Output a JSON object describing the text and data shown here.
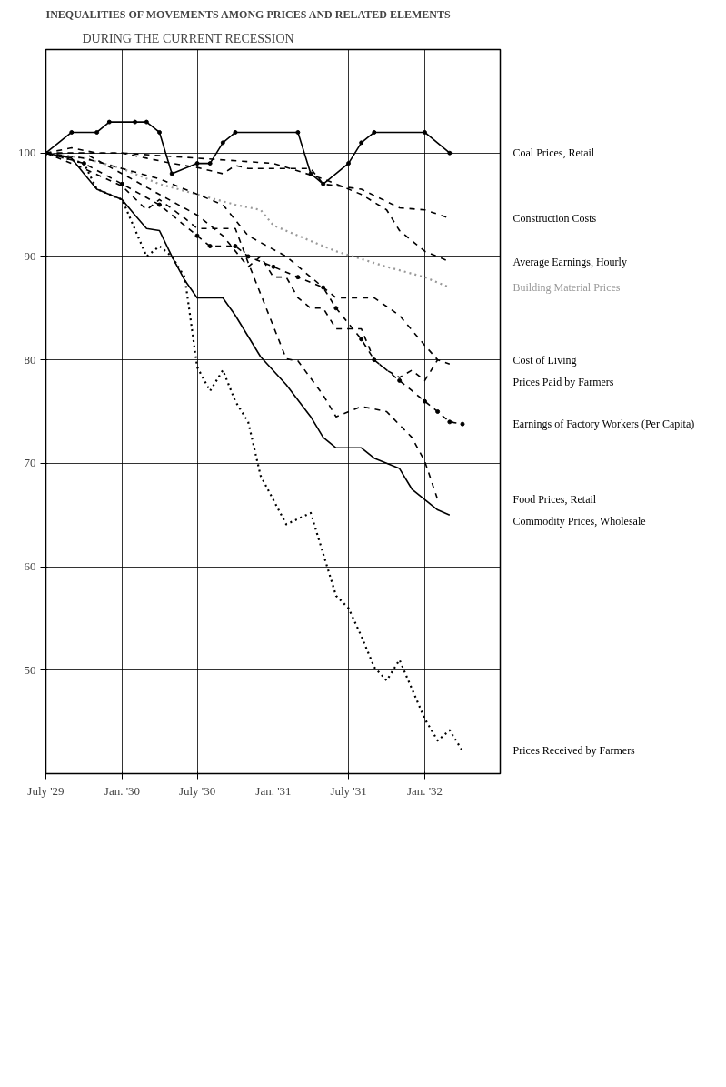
{
  "chart_data": {
    "type": "line",
    "title": "INEQUALITIES OF MOVEMENTS AMONG PRICES AND RELATED ELEMENTS",
    "subtitle": "DURING THE CURRENT RECESSION",
    "xlim": [
      "1929-07",
      "1932-07"
    ],
    "ylim": [
      40,
      110
    ],
    "xticks": [
      {
        "value": "1929-07",
        "label": "July '29"
      },
      {
        "value": "1930-01",
        "label": "Jan. '30"
      },
      {
        "value": "1930-07",
        "label": "July '30"
      },
      {
        "value": "1931-01",
        "label": "Jan. '31"
      },
      {
        "value": "1931-07",
        "label": "July '31"
      },
      {
        "value": "1932-01",
        "label": "Jan. '32"
      }
    ],
    "yticks": [
      50,
      60,
      70,
      80,
      90,
      100
    ],
    "grid": true,
    "legend": false,
    "series": [
      {
        "name": "Coal Prices, Retail",
        "color": "#000000",
        "line_style": "solid",
        "marker": "circle",
        "x": [
          "1929-07",
          "1929-09",
          "1929-11",
          "1929-12",
          "1930-02",
          "1930-03",
          "1930-04",
          "1930-05",
          "1930-07",
          "1930-08",
          "1930-09",
          "1930-10",
          "1931-03",
          "1931-04",
          "1931-05",
          "1931-07",
          "1931-08",
          "1931-09",
          "1932-01",
          "1932-03"
        ],
        "values": [
          100,
          102,
          102,
          103,
          103,
          103,
          102,
          98,
          99,
          99,
          101,
          102,
          102,
          98,
          97,
          99,
          101,
          102,
          102,
          100
        ]
      },
      {
        "name": "Construction Costs",
        "color": "#000000",
        "line_style": "dashed",
        "x": [
          "1929-07",
          "1929-09",
          "1929-11",
          "1930-01",
          "1930-03",
          "1930-05",
          "1930-07",
          "1930-09",
          "1930-10",
          "1930-11",
          "1931-01",
          "1931-04",
          "1931-05",
          "1931-08",
          "1931-11",
          "1932-01",
          "1932-03"
        ],
        "values": [
          100,
          100.5,
          100,
          100,
          99.5,
          99,
          98.6,
          98,
          98.8,
          98.5,
          98.5,
          98.5,
          97,
          96.5,
          94.7,
          94.5,
          93.7
        ]
      },
      {
        "name": "Average Earnings, Hourly",
        "color": "#000000",
        "line_style": "dashed",
        "x": [
          "1929-07",
          "1930-01",
          "1930-07",
          "1931-01",
          "1931-05",
          "1931-08",
          "1931-10",
          "1931-11",
          "1932-01",
          "1932-03"
        ],
        "values": [
          100,
          100,
          99.5,
          99,
          97.5,
          96,
          94.5,
          92.5,
          90.5,
          89.5
        ]
      },
      {
        "name": "Building Material Prices",
        "color": "#999999",
        "line_style": "dotted",
        "x": [
          "1929-07",
          "1929-10",
          "1930-01",
          "1930-04",
          "1930-07",
          "1930-10",
          "1930-12",
          "1931-01",
          "1931-04",
          "1931-06",
          "1931-10",
          "1932-01",
          "1932-03"
        ],
        "values": [
          100,
          99.5,
          98.5,
          97,
          96,
          95,
          94.5,
          93,
          91.5,
          90.5,
          89,
          88,
          87
        ]
      },
      {
        "name": "Cost of Living",
        "color": "#000000",
        "line_style": "dashed",
        "x": [
          "1929-07",
          "1929-10",
          "1930-01",
          "1930-04",
          "1930-06",
          "1930-09",
          "1930-11",
          "1931-02",
          "1931-04",
          "1931-06",
          "1931-09",
          "1931-11",
          "1932-01",
          "1932-02"
        ],
        "values": [
          100,
          99.5,
          98.5,
          97.5,
          96.5,
          95,
          92,
          90,
          88,
          86,
          86,
          84.3,
          81.4,
          80
        ]
      },
      {
        "name": "Prices Paid by Farmers",
        "color": "#000000",
        "line_style": "dashed",
        "x": [
          "1929-07",
          "1929-10",
          "1930-01",
          "1930-04",
          "1930-07",
          "1930-09",
          "1930-11",
          "1930-12",
          "1931-01",
          "1931-02",
          "1931-03",
          "1931-04",
          "1931-05",
          "1931-06",
          "1931-08",
          "1931-09",
          "1931-10",
          "1931-11",
          "1931-12",
          "1932-01",
          "1932-02",
          "1932-03"
        ],
        "values": [
          100,
          100,
          98,
          96,
          94,
          92,
          89,
          90,
          88,
          88,
          86,
          85,
          85,
          83,
          83,
          80,
          79,
          78.3,
          79,
          78,
          80,
          79.6
        ]
      },
      {
        "name": "Earnings of Factory Workers (Per Capita)",
        "color": "#000000",
        "line_style": "dashed",
        "marker": "circle",
        "x": [
          "1929-07",
          "1929-10",
          "1930-01",
          "1930-04",
          "1930-07",
          "1930-08",
          "1930-10",
          "1930-11",
          "1931-01",
          "1931-03",
          "1931-05",
          "1931-06",
          "1931-08",
          "1931-09",
          "1931-11",
          "1932-01",
          "1932-02",
          "1932-03",
          "1932-04"
        ],
        "values": [
          100,
          99,
          97,
          95,
          92,
          91,
          91,
          90,
          89,
          88,
          87,
          85,
          82,
          80,
          78,
          76,
          75,
          74,
          73.8
        ]
      },
      {
        "name": "Food Prices, Retail",
        "color": "#000000",
        "line_style": "dashed",
        "x": [
          "1929-07",
          "1929-10",
          "1930-01",
          "1930-03",
          "1930-04",
          "1930-06",
          "1930-07",
          "1930-10",
          "1930-11",
          "1931-02",
          "1931-03",
          "1931-05",
          "1931-06",
          "1931-08",
          "1931-10",
          "1931-12",
          "1932-01",
          "1932-02"
        ],
        "values": [
          100,
          98.5,
          96.8,
          94.5,
          95.5,
          93.7,
          92.7,
          92.7,
          89.4,
          80.1,
          79.9,
          76.6,
          74.5,
          75.5,
          75,
          72.5,
          70.2,
          66.5
        ]
      },
      {
        "name": "Commodity Prices, Wholesale",
        "color": "#000000",
        "line_style": "solid",
        "x": [
          "1929-07",
          "1929-09",
          "1929-10",
          "1929-11",
          "1930-01",
          "1930-02",
          "1930-03",
          "1930-04",
          "1930-05",
          "1930-06",
          "1930-07",
          "1930-09",
          "1930-10",
          "1930-12",
          "1931-02",
          "1931-04",
          "1931-05",
          "1931-06",
          "1931-08",
          "1931-09",
          "1931-11",
          "1931-12",
          "1932-02",
          "1932-03"
        ],
        "values": [
          100,
          99.5,
          98,
          96.5,
          95.5,
          94,
          92.7,
          92.5,
          90,
          87.7,
          86,
          86,
          84.3,
          80.3,
          77.6,
          74.5,
          72.5,
          71.5,
          71.5,
          70.5,
          69.5,
          67.5,
          65.5,
          65
        ]
      },
      {
        "name": "Prices Received by Farmers",
        "color": "#000000",
        "line_style": "dotted",
        "x": [
          "1929-07",
          "1929-10",
          "1929-11",
          "1930-01",
          "1930-03",
          "1930-04",
          "1930-05",
          "1930-06",
          "1930-07",
          "1930-08",
          "1930-09",
          "1930-10",
          "1930-11",
          "1930-12",
          "1931-02",
          "1931-04",
          "1931-06",
          "1931-07",
          "1931-08",
          "1931-09",
          "1931-10",
          "1931-11",
          "1932-01",
          "1932-02",
          "1932-03",
          "1932-04"
        ],
        "values": [
          100,
          99,
          96.5,
          95.5,
          90,
          91,
          90,
          88,
          79.3,
          77,
          79,
          76,
          74,
          68.8,
          64.1,
          65.2,
          57.2,
          56,
          53.3,
          50.3,
          49,
          51,
          45.3,
          43.2,
          44.2,
          42.2
        ]
      }
    ]
  }
}
